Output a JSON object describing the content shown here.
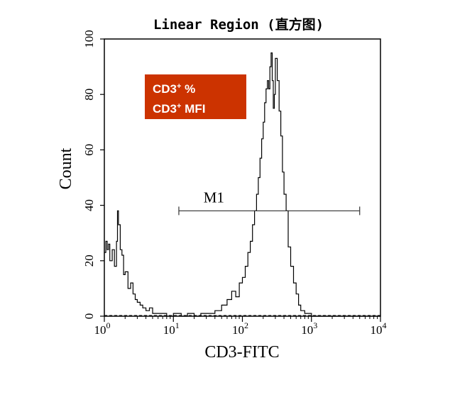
{
  "chart_data": {
    "type": "area",
    "title": "Linear Region (直方图)",
    "xlabel": "CD3-FITC",
    "ylabel": "Count",
    "xscale": "log",
    "xlim": [
      1,
      10000
    ],
    "ylim": [
      0,
      100
    ],
    "xticks": [
      {
        "base": "10",
        "exp": "0"
      },
      {
        "base": "10",
        "exp": "1"
      },
      {
        "base": "10",
        "exp": "2"
      },
      {
        "base": "10",
        "exp": "3"
      },
      {
        "base": "10",
        "exp": "4"
      }
    ],
    "yticks": [
      "0",
      "20",
      "40",
      "60",
      "80",
      "100"
    ],
    "ytick_values": [
      0,
      20,
      40,
      60,
      80,
      100
    ],
    "grid": false,
    "series": [
      {
        "x": [
          1.0,
          1.05,
          1.1,
          1.15,
          1.2,
          1.3,
          1.4,
          1.5,
          1.55,
          1.6,
          1.7,
          1.8,
          1.9,
          2.0,
          2.2,
          2.4,
          2.6,
          2.8,
          3.0,
          3.3,
          3.6,
          4.0,
          4.5,
          5.0,
          6.0,
          7.0,
          8.0,
          10.0,
          13.0,
          16.0,
          20.0,
          25.0,
          30.0,
          40.0,
          50.0,
          60.0,
          70.0,
          80.0,
          90.0,
          100.0,
          110.0,
          120.0,
          130.0,
          140.0,
          150.0,
          160.0,
          170.0,
          180.0,
          190.0,
          200.0,
          210.0,
          220.0,
          230.0,
          240.0,
          250.0,
          260.0,
          270.0,
          280.0,
          290.0,
          300.0,
          320.0,
          340.0,
          360.0,
          380.0,
          400.0,
          430.0,
          460.0,
          500.0,
          550.0,
          600.0,
          650.0,
          700.0,
          800.0,
          900.0,
          1000.0,
          1200.0,
          1500.0,
          2000.0,
          5000.0,
          10000.0
        ],
        "y": [
          23,
          27,
          24,
          26,
          20,
          24,
          18,
          27,
          38,
          33,
          24,
          22,
          15,
          16,
          10,
          12,
          8,
          6,
          5,
          4,
          3,
          2,
          3,
          1,
          1,
          1,
          0,
          1,
          0,
          1,
          0,
          1,
          1,
          2,
          4,
          6,
          9,
          7,
          12,
          14,
          18,
          23,
          27,
          33,
          38,
          44,
          50,
          57,
          64,
          70,
          77,
          82,
          85,
          82,
          90,
          95,
          85,
          75,
          80,
          93,
          85,
          74,
          65,
          52,
          44,
          38,
          25,
          18,
          12,
          8,
          4,
          2,
          1,
          1,
          0,
          0,
          0,
          0,
          0,
          0
        ]
      }
    ],
    "markers": [
      {
        "label": "M1",
        "x_start": 12,
        "x_end": 5000,
        "y": 38
      }
    ],
    "annotations": [
      {
        "lines": [
          {
            "text": "CD3",
            "sup": "+",
            "after": " %"
          },
          {
            "text": "CD3",
            "sup": "+",
            "after": " MFI"
          }
        ],
        "color": "#cc3300"
      }
    ]
  }
}
